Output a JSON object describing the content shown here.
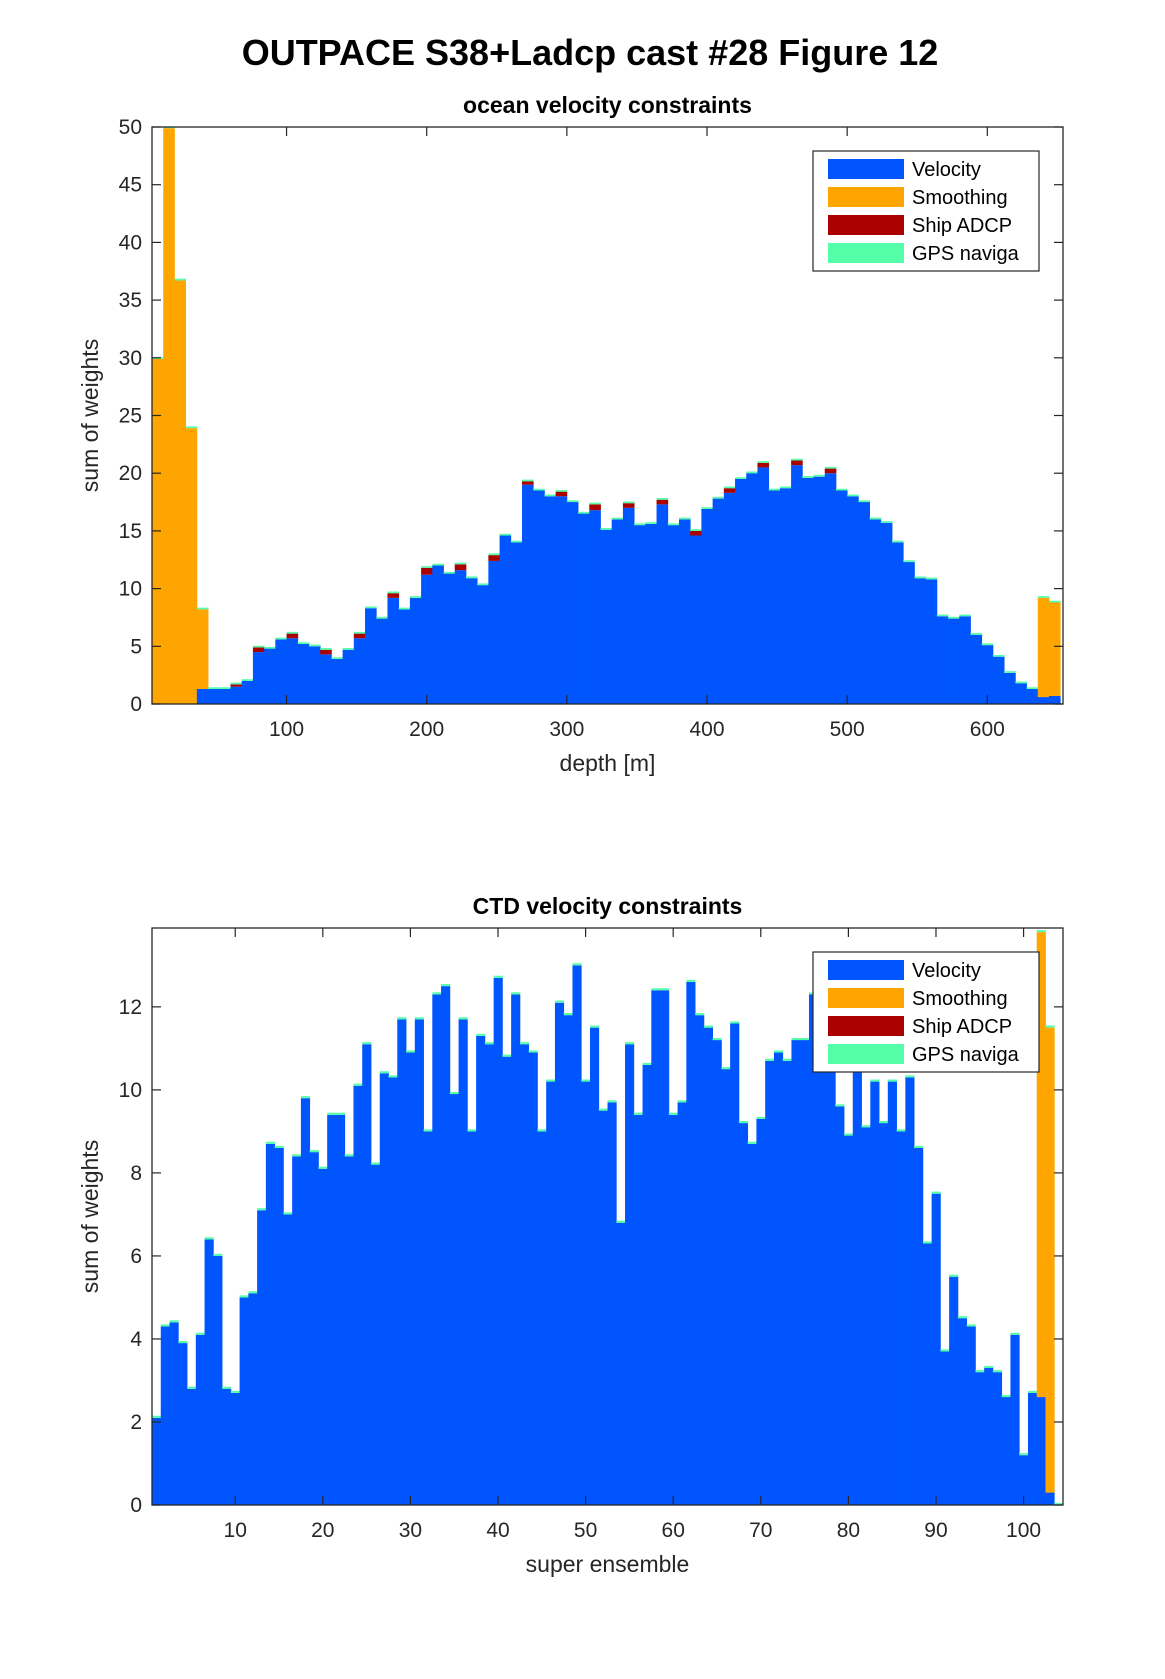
{
  "figure_title": "OUTPACE S38+Ladcp cast #28  Figure 12",
  "colors": {
    "velocity": "#0055ff",
    "smoothing": "#ffa500",
    "ship_adcp": "#aa0000",
    "gps_navigation": "#55ffaa"
  },
  "chart_data": [
    {
      "type": "bar",
      "stacked": true,
      "title": "ocean velocity constraints",
      "xlabel": "depth [m]",
      "ylabel": "sum of weights",
      "xlim": [
        4,
        654
      ],
      "ylim": [
        0,
        50
      ],
      "xticks": [
        100,
        200,
        300,
        400,
        500,
        600
      ],
      "yticks": [
        0,
        5,
        10,
        15,
        20,
        25,
        30,
        35,
        40,
        45,
        50
      ],
      "grid": false,
      "legend_position": "top-right",
      "bin_width": 8,
      "x": [
        8,
        16,
        24,
        32,
        40,
        48,
        56,
        64,
        72,
        80,
        88,
        96,
        104,
        112,
        120,
        128,
        136,
        144,
        152,
        160,
        168,
        176,
        184,
        192,
        200,
        208,
        216,
        224,
        232,
        240,
        248,
        256,
        264,
        272,
        280,
        288,
        296,
        304,
        312,
        320,
        328,
        336,
        344,
        352,
        360,
        368,
        376,
        384,
        392,
        400,
        408,
        416,
        424,
        432,
        440,
        448,
        456,
        464,
        472,
        480,
        488,
        496,
        504,
        512,
        520,
        528,
        536,
        544,
        552,
        560,
        568,
        576,
        584,
        592,
        600,
        608,
        616,
        624,
        632,
        640,
        648
      ],
      "series": [
        {
          "name": "Velocity",
          "values": [
            0,
            0,
            0,
            0,
            1.3,
            1.3,
            1.3,
            1.5,
            2.0,
            4.5,
            4.8,
            5.6,
            5.7,
            5.2,
            5.0,
            4.3,
            3.9,
            4.7,
            5.7,
            8.3,
            7.4,
            9.2,
            8.2,
            9.2,
            11.2,
            12.0,
            11.3,
            11.6,
            10.9,
            10.3,
            12.4,
            14.6,
            14.0,
            19.0,
            18.5,
            18.0,
            18.0,
            17.5,
            16.5,
            16.8,
            15.1,
            16.0,
            17.0,
            15.5,
            15.6,
            17.3,
            15.5,
            16.0,
            14.6,
            16.9,
            17.8,
            18.3,
            19.5,
            20.0,
            20.5,
            18.5,
            18.7,
            20.7,
            19.6,
            19.7,
            20.0,
            18.5,
            18.0,
            17.5,
            16.0,
            15.7,
            14.0,
            12.3,
            10.9,
            10.8,
            7.6,
            7.4,
            7.6,
            6.0,
            5.1,
            4.1,
            2.7,
            1.8,
            1.3,
            0.6,
            0.7
          ]
        },
        {
          "name": "Smoothing",
          "values": [
            29.9,
            49.9,
            36.7,
            23.9,
            6.9,
            0,
            0,
            0,
            0,
            0,
            0,
            0,
            0,
            0,
            0,
            0,
            0,
            0,
            0,
            0,
            0,
            0,
            0,
            0,
            0,
            0,
            0,
            0,
            0,
            0,
            0,
            0,
            0,
            0,
            0,
            0,
            0,
            0,
            0,
            0,
            0,
            0,
            0,
            0,
            0,
            0,
            0,
            0,
            0,
            0,
            0,
            0,
            0,
            0,
            0,
            0,
            0,
            0,
            0,
            0,
            0,
            0,
            0,
            0,
            0,
            0,
            0,
            0,
            0,
            0,
            0,
            0,
            0,
            0,
            0,
            0,
            0,
            0,
            0,
            8.6,
            8.1
          ]
        },
        {
          "name": "Ship ADCP",
          "values": [
            0,
            0,
            0,
            0,
            0,
            0,
            0,
            0.2,
            0,
            0.4,
            0,
            0,
            0.4,
            0,
            0,
            0.4,
            0,
            0,
            0.4,
            0,
            0,
            0.4,
            0,
            0,
            0.6,
            0,
            0,
            0.5,
            0,
            0,
            0.5,
            0,
            0,
            0.3,
            0,
            0,
            0.4,
            0,
            0,
            0.5,
            0,
            0,
            0.4,
            0,
            0,
            0.4,
            0,
            0,
            0.4,
            0,
            0,
            0.4,
            0,
            0,
            0.4,
            0,
            0,
            0.4,
            0,
            0,
            0.4,
            0,
            0,
            0,
            0,
            0,
            0,
            0,
            0,
            0,
            0,
            0,
            0,
            0,
            0,
            0,
            0,
            0,
            0,
            0,
            0
          ]
        },
        {
          "name": "GPS naviga",
          "values": [
            0.15,
            0.15,
            0.15,
            0.15,
            0.15,
            0.15,
            0.15,
            0.15,
            0.15,
            0.15,
            0.15,
            0.15,
            0.15,
            0.15,
            0.15,
            0.15,
            0.15,
            0.15,
            0.15,
            0.15,
            0.15,
            0.15,
            0.15,
            0.15,
            0.15,
            0.15,
            0.15,
            0.15,
            0.15,
            0.15,
            0.15,
            0.15,
            0.15,
            0.15,
            0.15,
            0.15,
            0.15,
            0.15,
            0.15,
            0.15,
            0.15,
            0.15,
            0.15,
            0.15,
            0.15,
            0.15,
            0.15,
            0.15,
            0.15,
            0.15,
            0.15,
            0.15,
            0.15,
            0.15,
            0.15,
            0.15,
            0.15,
            0.15,
            0.15,
            0.15,
            0.15,
            0.15,
            0.15,
            0.15,
            0.15,
            0.15,
            0.15,
            0.15,
            0.15,
            0.15,
            0.15,
            0.15,
            0.15,
            0.15,
            0.15,
            0.15,
            0.15,
            0.15,
            0.15,
            0.15,
            0.15
          ]
        }
      ]
    },
    {
      "type": "bar",
      "stacked": true,
      "title": "CTD velocity constraints",
      "xlabel": "super ensemble",
      "ylabel": "sum of weights",
      "xlim": [
        0.5,
        104.5
      ],
      "ylim": [
        0,
        13.9
      ],
      "xticks": [
        10,
        20,
        30,
        40,
        50,
        60,
        70,
        80,
        90,
        100
      ],
      "yticks": [
        0,
        2,
        4,
        6,
        8,
        10,
        12
      ],
      "grid": false,
      "legend_position": "top-right",
      "bin_width": 1,
      "x": [
        1,
        2,
        3,
        4,
        5,
        6,
        7,
        8,
        9,
        10,
        11,
        12,
        13,
        14,
        15,
        16,
        17,
        18,
        19,
        20,
        21,
        22,
        23,
        24,
        25,
        26,
        27,
        28,
        29,
        30,
        31,
        32,
        33,
        34,
        35,
        36,
        37,
        38,
        39,
        40,
        41,
        42,
        43,
        44,
        45,
        46,
        47,
        48,
        49,
        50,
        51,
        52,
        53,
        54,
        55,
        56,
        57,
        58,
        59,
        60,
        61,
        62,
        63,
        64,
        65,
        66,
        67,
        68,
        69,
        70,
        71,
        72,
        73,
        74,
        75,
        76,
        77,
        78,
        79,
        80,
        81,
        82,
        83,
        84,
        85,
        86,
        87,
        88,
        89,
        90,
        91,
        92,
        93,
        94,
        95,
        96,
        97,
        98,
        99,
        100,
        101,
        102,
        103,
        104
      ],
      "series": [
        {
          "name": "Velocity",
          "values": [
            2.1,
            4.3,
            4.4,
            3.9,
            2.8,
            4.1,
            6.4,
            6.0,
            2.8,
            2.7,
            5.0,
            5.1,
            7.1,
            8.7,
            8.6,
            7.0,
            8.4,
            9.8,
            8.5,
            8.1,
            9.4,
            9.4,
            8.4,
            10.1,
            11.1,
            8.2,
            10.4,
            10.3,
            11.7,
            10.9,
            11.7,
            9.0,
            12.3,
            12.5,
            9.9,
            11.7,
            9.0,
            11.3,
            11.1,
            12.7,
            10.8,
            12.3,
            11.1,
            10.9,
            9.0,
            10.2,
            12.1,
            11.8,
            13.0,
            10.2,
            11.5,
            9.5,
            9.7,
            6.8,
            11.1,
            9.4,
            10.6,
            12.4,
            12.4,
            9.4,
            9.7,
            12.6,
            11.8,
            11.5,
            11.2,
            10.5,
            11.6,
            9.2,
            8.7,
            9.3,
            10.7,
            10.9,
            10.7,
            11.2,
            11.2,
            12.3,
            12.4,
            12.2,
            9.6,
            8.9,
            10.8,
            9.1,
            10.2,
            9.2,
            10.2,
            9.0,
            10.3,
            8.6,
            6.3,
            7.5,
            3.7,
            5.5,
            4.5,
            4.3,
            3.2,
            3.3,
            3.2,
            2.6,
            4.1,
            1.2,
            2.7,
            2.6,
            0.3,
            0
          ]
        },
        {
          "name": "Smoothing",
          "values": [
            0,
            0,
            0,
            0,
            0,
            0,
            0,
            0,
            0,
            0,
            0,
            0,
            0,
            0,
            0,
            0,
            0,
            0,
            0,
            0,
            0,
            0,
            0,
            0,
            0,
            0,
            0,
            0,
            0,
            0,
            0,
            0,
            0,
            0,
            0,
            0,
            0,
            0,
            0,
            0,
            0,
            0,
            0,
            0,
            0,
            0,
            0,
            0,
            0,
            0,
            0,
            0,
            0,
            0,
            0,
            0,
            0,
            0,
            0,
            0,
            0,
            0,
            0,
            0,
            0,
            0,
            0,
            0,
            0,
            0,
            0,
            0,
            0,
            0,
            0,
            0,
            0,
            0,
            0,
            0,
            0,
            0,
            0,
            0,
            0,
            0,
            0,
            0,
            0,
            0,
            0,
            0,
            0,
            0,
            0,
            0,
            0,
            0,
            0,
            0,
            0,
            11.2,
            11.2,
            0
          ]
        },
        {
          "name": "Ship ADCP",
          "values": [
            0,
            0,
            0,
            0,
            0,
            0,
            0,
            0,
            0,
            0,
            0,
            0,
            0,
            0,
            0,
            0,
            0,
            0,
            0,
            0,
            0,
            0,
            0,
            0,
            0,
            0,
            0,
            0,
            0,
            0,
            0,
            0,
            0,
            0,
            0,
            0,
            0,
            0,
            0,
            0,
            0,
            0,
            0,
            0,
            0,
            0,
            0,
            0,
            0,
            0,
            0,
            0,
            0,
            0,
            0,
            0,
            0,
            0,
            0,
            0,
            0,
            0,
            0,
            0,
            0,
            0,
            0,
            0,
            0,
            0,
            0,
            0,
            0,
            0,
            0,
            0,
            0,
            0,
            0,
            0,
            0,
            0,
            0,
            0,
            0,
            0,
            0,
            0,
            0,
            0,
            0,
            0,
            0,
            0,
            0,
            0,
            0,
            0,
            0,
            0,
            0,
            0,
            0,
            0
          ]
        },
        {
          "name": "GPS naviga",
          "values": [
            0.05,
            0.05,
            0.05,
            0.05,
            0.05,
            0.05,
            0.05,
            0.05,
            0.05,
            0.05,
            0.05,
            0.05,
            0.05,
            0.05,
            0.05,
            0.05,
            0.05,
            0.05,
            0.05,
            0.05,
            0.05,
            0.05,
            0.05,
            0.05,
            0.05,
            0.05,
            0.05,
            0.05,
            0.05,
            0.05,
            0.05,
            0.05,
            0.05,
            0.05,
            0.05,
            0.05,
            0.05,
            0.05,
            0.05,
            0.05,
            0.05,
            0.05,
            0.05,
            0.05,
            0.05,
            0.05,
            0.05,
            0.05,
            0.05,
            0.05,
            0.05,
            0.05,
            0.05,
            0.05,
            0.05,
            0.05,
            0.05,
            0.05,
            0.05,
            0.05,
            0.05,
            0.05,
            0.05,
            0.05,
            0.05,
            0.05,
            0.05,
            0.05,
            0.05,
            0.05,
            0.05,
            0.05,
            0.05,
            0.05,
            0.05,
            0.05,
            0.05,
            0.05,
            0.05,
            0.05,
            0.05,
            0.05,
            0.05,
            0.05,
            0.05,
            0.05,
            0.05,
            0.05,
            0.05,
            0.05,
            0.05,
            0.05,
            0.05,
            0.05,
            0.05,
            0.05,
            0.05,
            0.05,
            0.05,
            0.05,
            0.05,
            0.05,
            0.05,
            0.05
          ]
        }
      ]
    }
  ]
}
